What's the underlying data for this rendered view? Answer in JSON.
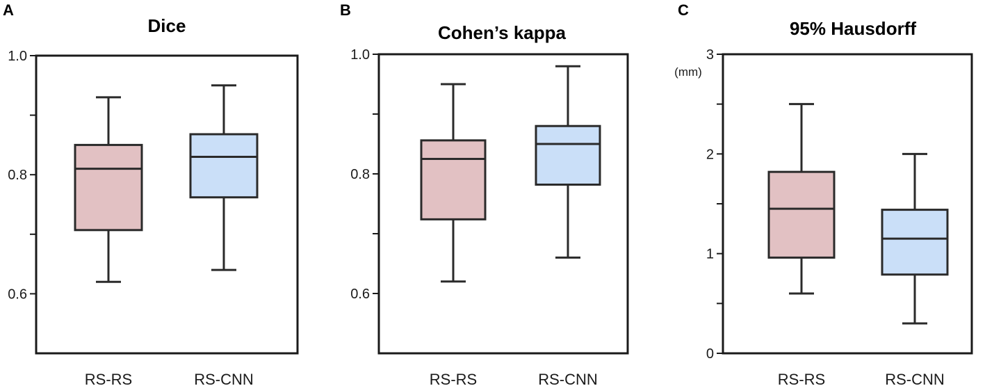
{
  "colors": {
    "rs_rs": "#e2c1c3",
    "rs_cnn": "#cadff8",
    "stroke": "#2a2a2a"
  },
  "chart_data": [
    {
      "type": "box",
      "panel": "A",
      "title": "Dice",
      "ylabel": "",
      "ylim": [
        0.5,
        1.0
      ],
      "yticks": [
        0.6,
        0.7,
        0.8,
        0.9,
        1.0
      ],
      "ytick_labels": [
        "0.6",
        "",
        "0.8",
        "",
        "1.0"
      ],
      "categories": [
        "RS-RS",
        "RS-CNN"
      ],
      "series": [
        {
          "min": 0.62,
          "q1": 0.707,
          "median": 0.81,
          "q3": 0.85,
          "max": 0.93
        },
        {
          "min": 0.64,
          "q1": 0.762,
          "median": 0.83,
          "q3": 0.868,
          "max": 0.95
        }
      ]
    },
    {
      "type": "box",
      "panel": "B",
      "title": "Cohen’s kappa",
      "ylabel": "",
      "ylim": [
        0.5,
        1.0
      ],
      "yticks": [
        0.6,
        0.7,
        0.8,
        0.9,
        1.0
      ],
      "ytick_labels": [
        "0.6",
        "",
        "0.8",
        "",
        "1.0"
      ],
      "categories": [
        "RS-RS",
        "RS-CNN"
      ],
      "series": [
        {
          "min": 0.62,
          "q1": 0.724,
          "median": 0.825,
          "q3": 0.856,
          "max": 0.95
        },
        {
          "min": 0.66,
          "q1": 0.782,
          "median": 0.85,
          "q3": 0.88,
          "max": 0.98
        }
      ]
    },
    {
      "type": "box",
      "panel": "C",
      "title": "95%  Hausdorff",
      "ylabel": "(mm)",
      "ylim": [
        0,
        3
      ],
      "yticks": [
        0,
        0.5,
        1,
        1.5,
        2,
        2.5,
        3
      ],
      "ytick_labels": [
        "0",
        "",
        "1",
        "",
        "2",
        "",
        "3"
      ],
      "categories": [
        "RS-RS",
        "RS-CNN"
      ],
      "series": [
        {
          "min": 0.6,
          "q1": 0.96,
          "median": 1.45,
          "q3": 1.82,
          "max": 2.5
        },
        {
          "min": 0.3,
          "q1": 0.79,
          "median": 1.15,
          "q3": 1.44,
          "max": 2.0
        }
      ]
    }
  ]
}
